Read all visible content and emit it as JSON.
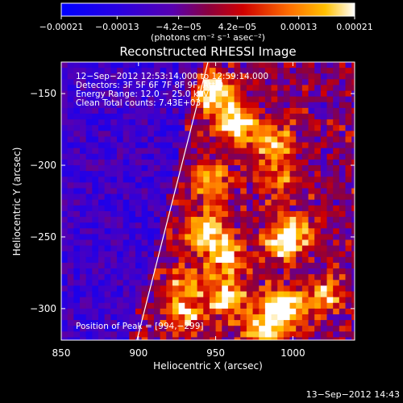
{
  "chart_data": {
    "type": "heatmap",
    "title": "Reconstructed RHESSI Image",
    "xlabel": "Heliocentric X (arcsec)",
    "ylabel": "Heliocentric Y (arcsec)",
    "xlim": [
      850,
      1040
    ],
    "ylim": [
      -322,
      -128
    ],
    "x_ticks": [
      850,
      900,
      950,
      1000
    ],
    "x_tick_labels": [
      "850",
      "900",
      "950",
      "1000"
    ],
    "y_ticks": [
      -150,
      -200,
      -250,
      -300
    ],
    "y_tick_labels": [
      "−150",
      "−200",
      "−250",
      "−300"
    ],
    "colorbar": {
      "range": [
        -0.00021,
        0.00021
      ],
      "tick_values": [
        -0.00021,
        -0.00013,
        -4.2e-05,
        4.2e-05,
        0.00013,
        0.00021
      ],
      "tick_labels": [
        "−0.00021",
        "−0.00013",
        "−4.2e−05",
        "4.2e−05",
        "0.00013",
        "0.00021"
      ],
      "units_label": "(photons cm⁻² s⁻¹ asec⁻²)"
    },
    "annotations": [
      "12−Sep−2012 12:53:14.000 to 12:59:14.000",
      "Detectors: 3F 5F 6F 7F 8F 9F, Att 0",
      "Energy Range: 12.0 − 25.0 keV",
      "Clean     Total counts: 7.43E+03"
    ],
    "peak_label": "Position of Peak = [994,−299]",
    "footer_date": "13−Sep−2012 14:43",
    "limb_line": {
      "x": [
        899,
        945
      ],
      "y": [
        -322,
        -128
      ]
    },
    "sources": [
      {
        "x": 948,
        "y": -150,
        "intensity": 0.8
      },
      {
        "x": 963,
        "y": -170,
        "intensity": 0.75
      },
      {
        "x": 985,
        "y": -183,
        "intensity": 0.6
      },
      {
        "x": 990,
        "y": -210,
        "intensity": 0.45
      },
      {
        "x": 948,
        "y": -212,
        "intensity": 0.55
      },
      {
        "x": 943,
        "y": -245,
        "intensity": 0.6
      },
      {
        "x": 955,
        "y": -262,
        "intensity": 0.65
      },
      {
        "x": 993,
        "y": -255,
        "intensity": 0.55
      },
      {
        "x": 1003,
        "y": -248,
        "intensity": 0.45
      },
      {
        "x": 993,
        "y": -300,
        "intensity": 0.95
      },
      {
        "x": 958,
        "y": -292,
        "intensity": 0.7
      },
      {
        "x": 980,
        "y": -318,
        "intensity": 0.65
      },
      {
        "x": 1020,
        "y": -290,
        "intensity": 0.5
      },
      {
        "x": 930,
        "y": -282,
        "intensity": 0.45
      },
      {
        "x": 930,
        "y": -305,
        "intensity": 0.55
      }
    ]
  }
}
